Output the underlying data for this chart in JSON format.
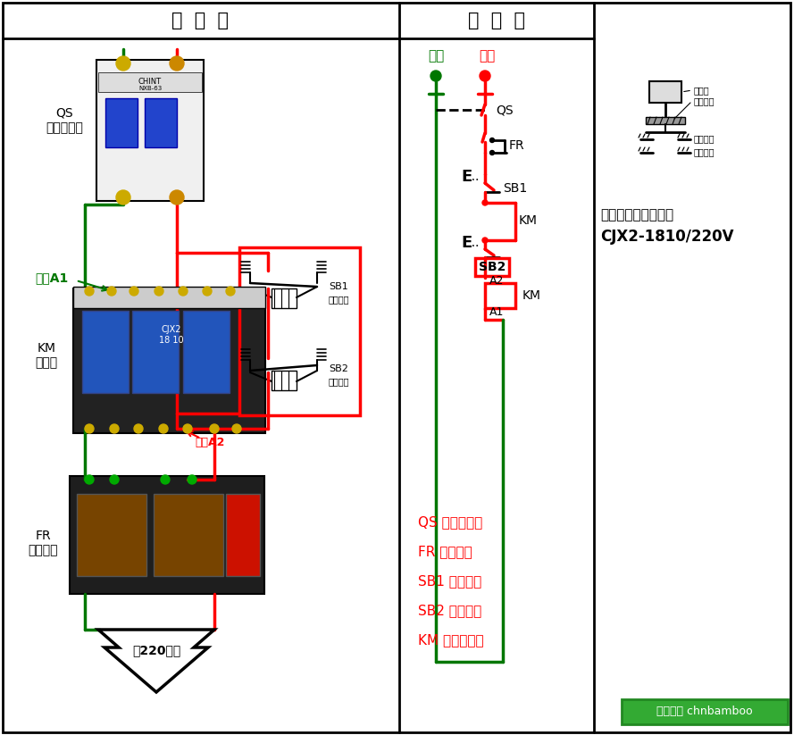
{
  "bg_color": "#ffffff",
  "black": "#000000",
  "red": "#ff0000",
  "green": "#00aa00",
  "dark_green": "#007700",
  "title_left": "实  物  图",
  "title_right": "原  理  图",
  "zero_label": "零线",
  "fire_label": "火线",
  "qs_label": "QS\n空气断路器",
  "km_label": "KM\n接触器",
  "fr_label": "FR\n热继电器",
  "coilA1_label": "线圈A1",
  "coilA2_label": "线圈A2",
  "motor_label": "接220电机",
  "sb1_label": "SB1",
  "sb1_sub": "停止按鈕",
  "sb2_label": "SB2",
  "sb2_sub": "启动按鈕",
  "note1": "注：交流接触器选用",
  "note2": "CJX2-1810/220V",
  "btn_cap": "按鈕帽",
  "btn_spring": "复位弹簧",
  "btn_nc": "常闭触头",
  "btn_no": "常开触头",
  "legend": [
    "QS 空气断路器",
    "FR 热继电器",
    "SB1 停止按鈕",
    "SB2 启动按鈕",
    "KM 交流接触器"
  ],
  "watermark": "百度知道 chnbamboo"
}
